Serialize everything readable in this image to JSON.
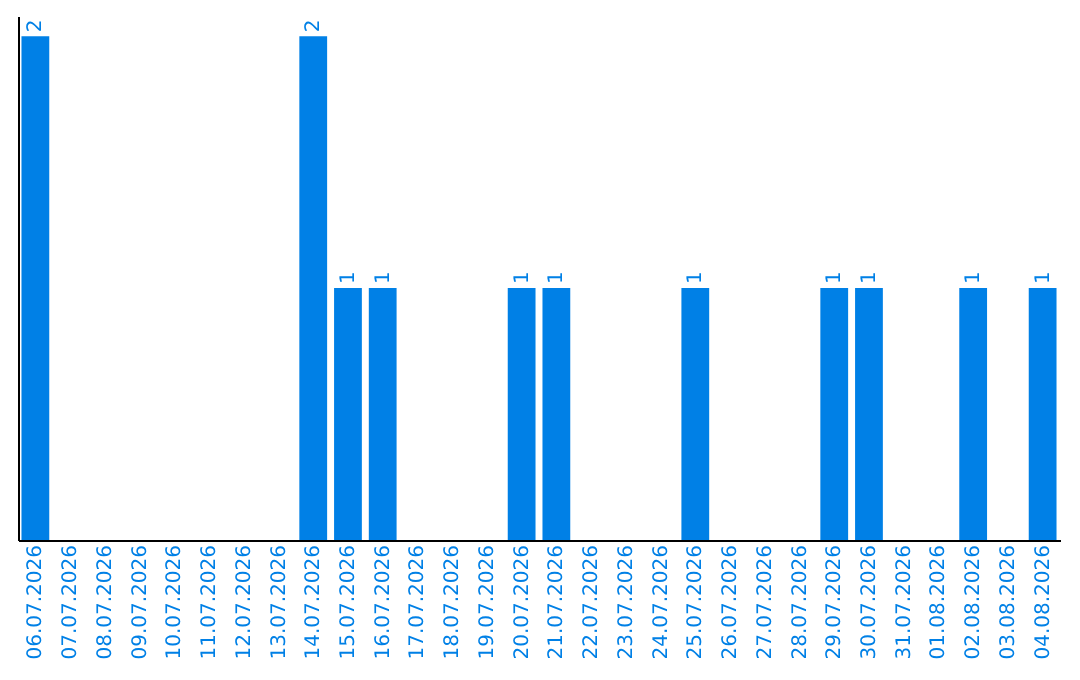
{
  "chart_data": {
    "type": "bar",
    "categories": [
      "06.07.2026",
      "07.07.2026",
      "08.07.2026",
      "09.07.2026",
      "10.07.2026",
      "11.07.2026",
      "12.07.2026",
      "13.07.2026",
      "14.07.2026",
      "15.07.2026",
      "16.07.2026",
      "17.07.2026",
      "18.07.2026",
      "19.07.2026",
      "20.07.2026",
      "21.07.2026",
      "22.07.2026",
      "23.07.2026",
      "24.07.2026",
      "25.07.2026",
      "26.07.2026",
      "27.07.2026",
      "28.07.2026",
      "29.07.2026",
      "30.07.2026",
      "31.07.2026",
      "01.08.2026",
      "02.08.2026",
      "03.08.2026",
      "04.08.2026"
    ],
    "values": [
      2,
      0,
      0,
      0,
      0,
      0,
      0,
      0,
      2,
      1,
      1,
      0,
      0,
      0,
      1,
      1,
      0,
      0,
      0,
      1,
      0,
      0,
      0,
      1,
      1,
      0,
      0,
      1,
      0,
      1
    ],
    "value_labels": [
      "2",
      null,
      null,
      null,
      null,
      null,
      null,
      null,
      "2",
      "1",
      "1",
      null,
      null,
      null,
      "1",
      "1",
      null,
      null,
      null,
      "1",
      null,
      null,
      null,
      "1",
      "1",
      null,
      null,
      "1",
      null,
      "1"
    ],
    "color": "#0080e6",
    "ylim": [
      0,
      2.08
    ],
    "tick_labels": "x",
    "grid": false
  }
}
